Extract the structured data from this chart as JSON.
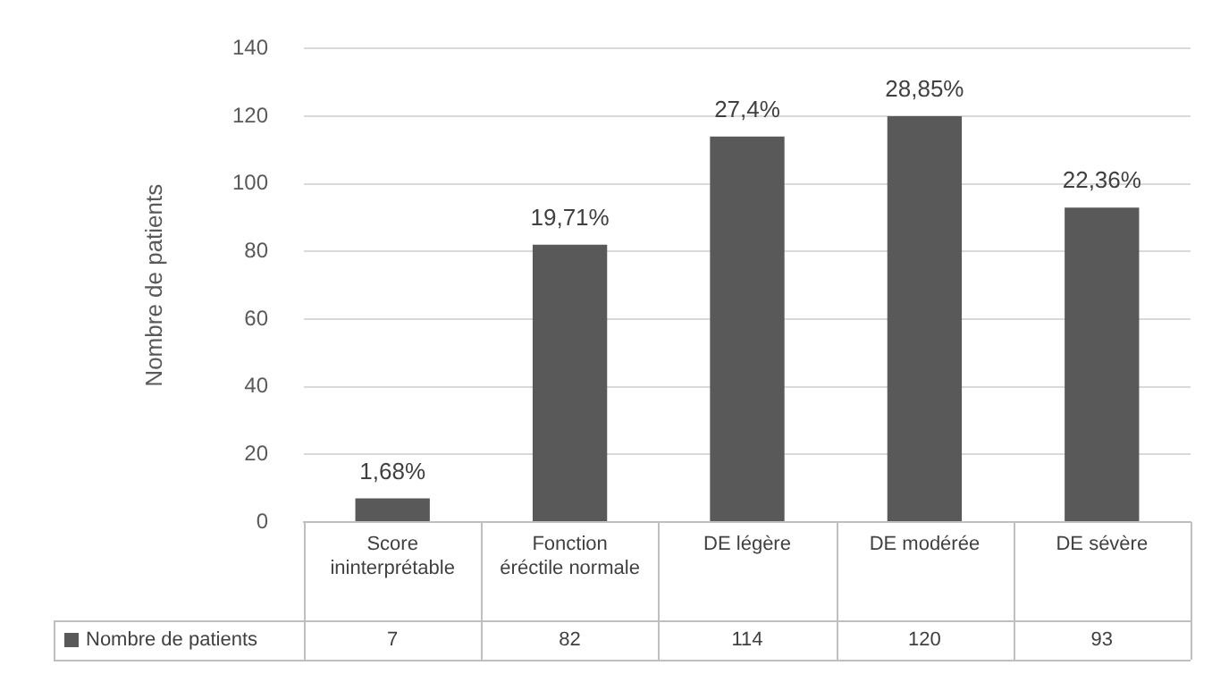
{
  "chart_data": {
    "type": "bar",
    "ylabel": "Nombre de patients",
    "categories": [
      "Score ininterprétable",
      "Fonction éréctile normale",
      "DE légère",
      "DE modérée",
      "DE sévère"
    ],
    "series": [
      {
        "name": "Nombre de patients",
        "color": "#595959",
        "values": [
          7,
          82,
          114,
          120,
          93
        ]
      }
    ],
    "annotations": [
      {
        "text": "1,68%",
        "x": "Score ininterprétable",
        "y": 7
      },
      {
        "text": "19,71%",
        "x": "Fonction éréctile normale",
        "y": 82
      },
      {
        "text": "27,4%",
        "x": "DE légère",
        "y": 114
      },
      {
        "text": "28,85%",
        "x": "DE modérée",
        "y": 120
      },
      {
        "text": "22,36%",
        "x": "DE sévère",
        "y": 93
      }
    ],
    "ylim": [
      0,
      140
    ],
    "yticks": [
      0,
      20,
      40,
      60,
      80,
      100,
      120,
      140
    ],
    "grid": "y",
    "data_labels": true
  }
}
